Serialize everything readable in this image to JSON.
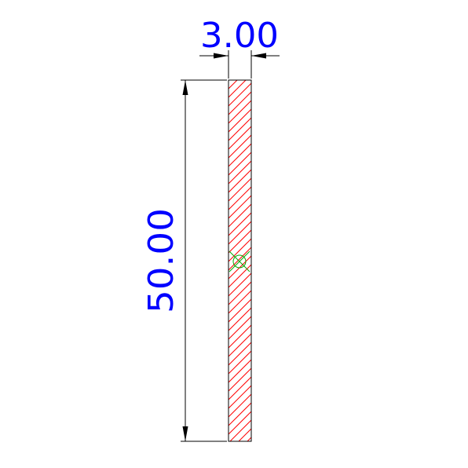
{
  "drawing": {
    "width_label": "3.00",
    "height_label": "50.00",
    "colors": {
      "outline": "#000000",
      "hatch": "#ff0000",
      "dimension_line": "#000000",
      "dimension_text": "#0000ff",
      "center_marker": "#00aa00"
    },
    "icons": {
      "center_marker": "circle-with-cross",
      "arrowhead": "closed-arrow"
    }
  }
}
